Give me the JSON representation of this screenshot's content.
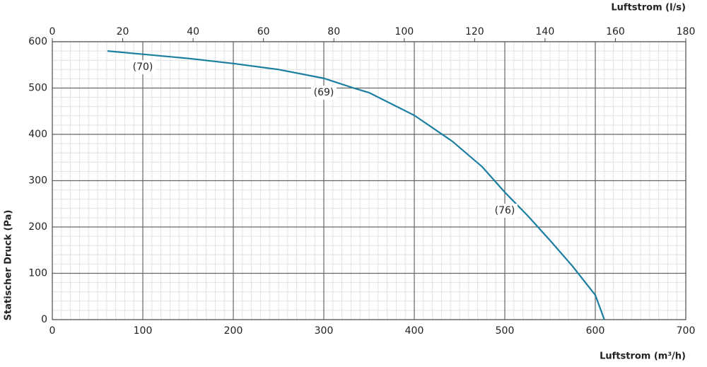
{
  "chart_data": {
    "type": "line",
    "x_label": "Luftstrom (m³/h)",
    "x2_label": "Luftstrom (l/s)",
    "y_label": "Statischer Druck (Pa)",
    "x": [
      61,
      100,
      150,
      200,
      250,
      300,
      333,
      350,
      400,
      442,
      475,
      500,
      525,
      550,
      575,
      600,
      610
    ],
    "series": [
      {
        "color": "#1a7ea0",
        "values": [
          580,
          573,
          564,
          553,
          540,
          521,
          500,
          490,
          441,
          385,
          330,
          275,
          225,
          171,
          115,
          53,
          0
        ]
      }
    ],
    "xlim": [
      0,
      700
    ],
    "xticks": [
      0,
      100,
      200,
      300,
      400,
      500,
      600,
      700
    ],
    "x2lim": [
      0,
      180
    ],
    "x2ticks": [
      0,
      20,
      40,
      60,
      80,
      100,
      120,
      140,
      160,
      180
    ],
    "ylim": [
      0,
      600
    ],
    "yticks": [
      0,
      100,
      200,
      300,
      400,
      500,
      600
    ],
    "grid": true,
    "minor_grid": true,
    "annotations": [
      {
        "text": "(70)",
        "x": 100,
        "y": 545
      },
      {
        "text": "(69)",
        "x": 300,
        "y": 490
      },
      {
        "text": "(76)",
        "x": 500,
        "y": 235
      }
    ]
  }
}
